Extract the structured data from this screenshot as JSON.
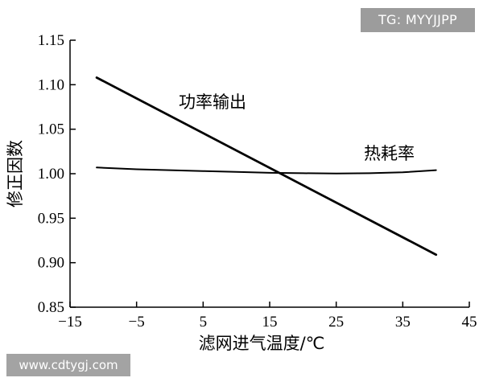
{
  "watermarks": {
    "top": "TG: MYYJJPP",
    "bottom": "www.cdtygj.com"
  },
  "chart_data": {
    "type": "line",
    "title": "",
    "xlabel": "滤网进气温度/℃",
    "ylabel": "修正因数",
    "xlim": [
      -15,
      45
    ],
    "ylim": [
      0.85,
      1.15
    ],
    "x_ticks": [
      -15,
      -5,
      5,
      15,
      25,
      35,
      45
    ],
    "x_tick_labels": [
      "−15",
      "−5",
      "5",
      "15",
      "25",
      "35",
      "45"
    ],
    "y_ticks": [
      0.85,
      0.9,
      0.95,
      1.0,
      1.05,
      1.1,
      1.15
    ],
    "y_tick_labels": [
      "0.85",
      "0.90",
      "0.95",
      "1.00",
      "1.05",
      "1.10",
      "1.15"
    ],
    "grid": false,
    "series": [
      {
        "name": "功率输出",
        "x": [
          -11,
          40
        ],
        "y": [
          1.108,
          0.909
        ]
      },
      {
        "name": "热耗率",
        "x": [
          -11,
          -5,
          0,
          5,
          10,
          15,
          20,
          25,
          30,
          35,
          40
        ],
        "y": [
          1.007,
          1.005,
          1.004,
          1.003,
          1.002,
          1.001,
          1.0005,
          1.0003,
          1.0005,
          1.0015,
          1.004
        ]
      }
    ]
  }
}
